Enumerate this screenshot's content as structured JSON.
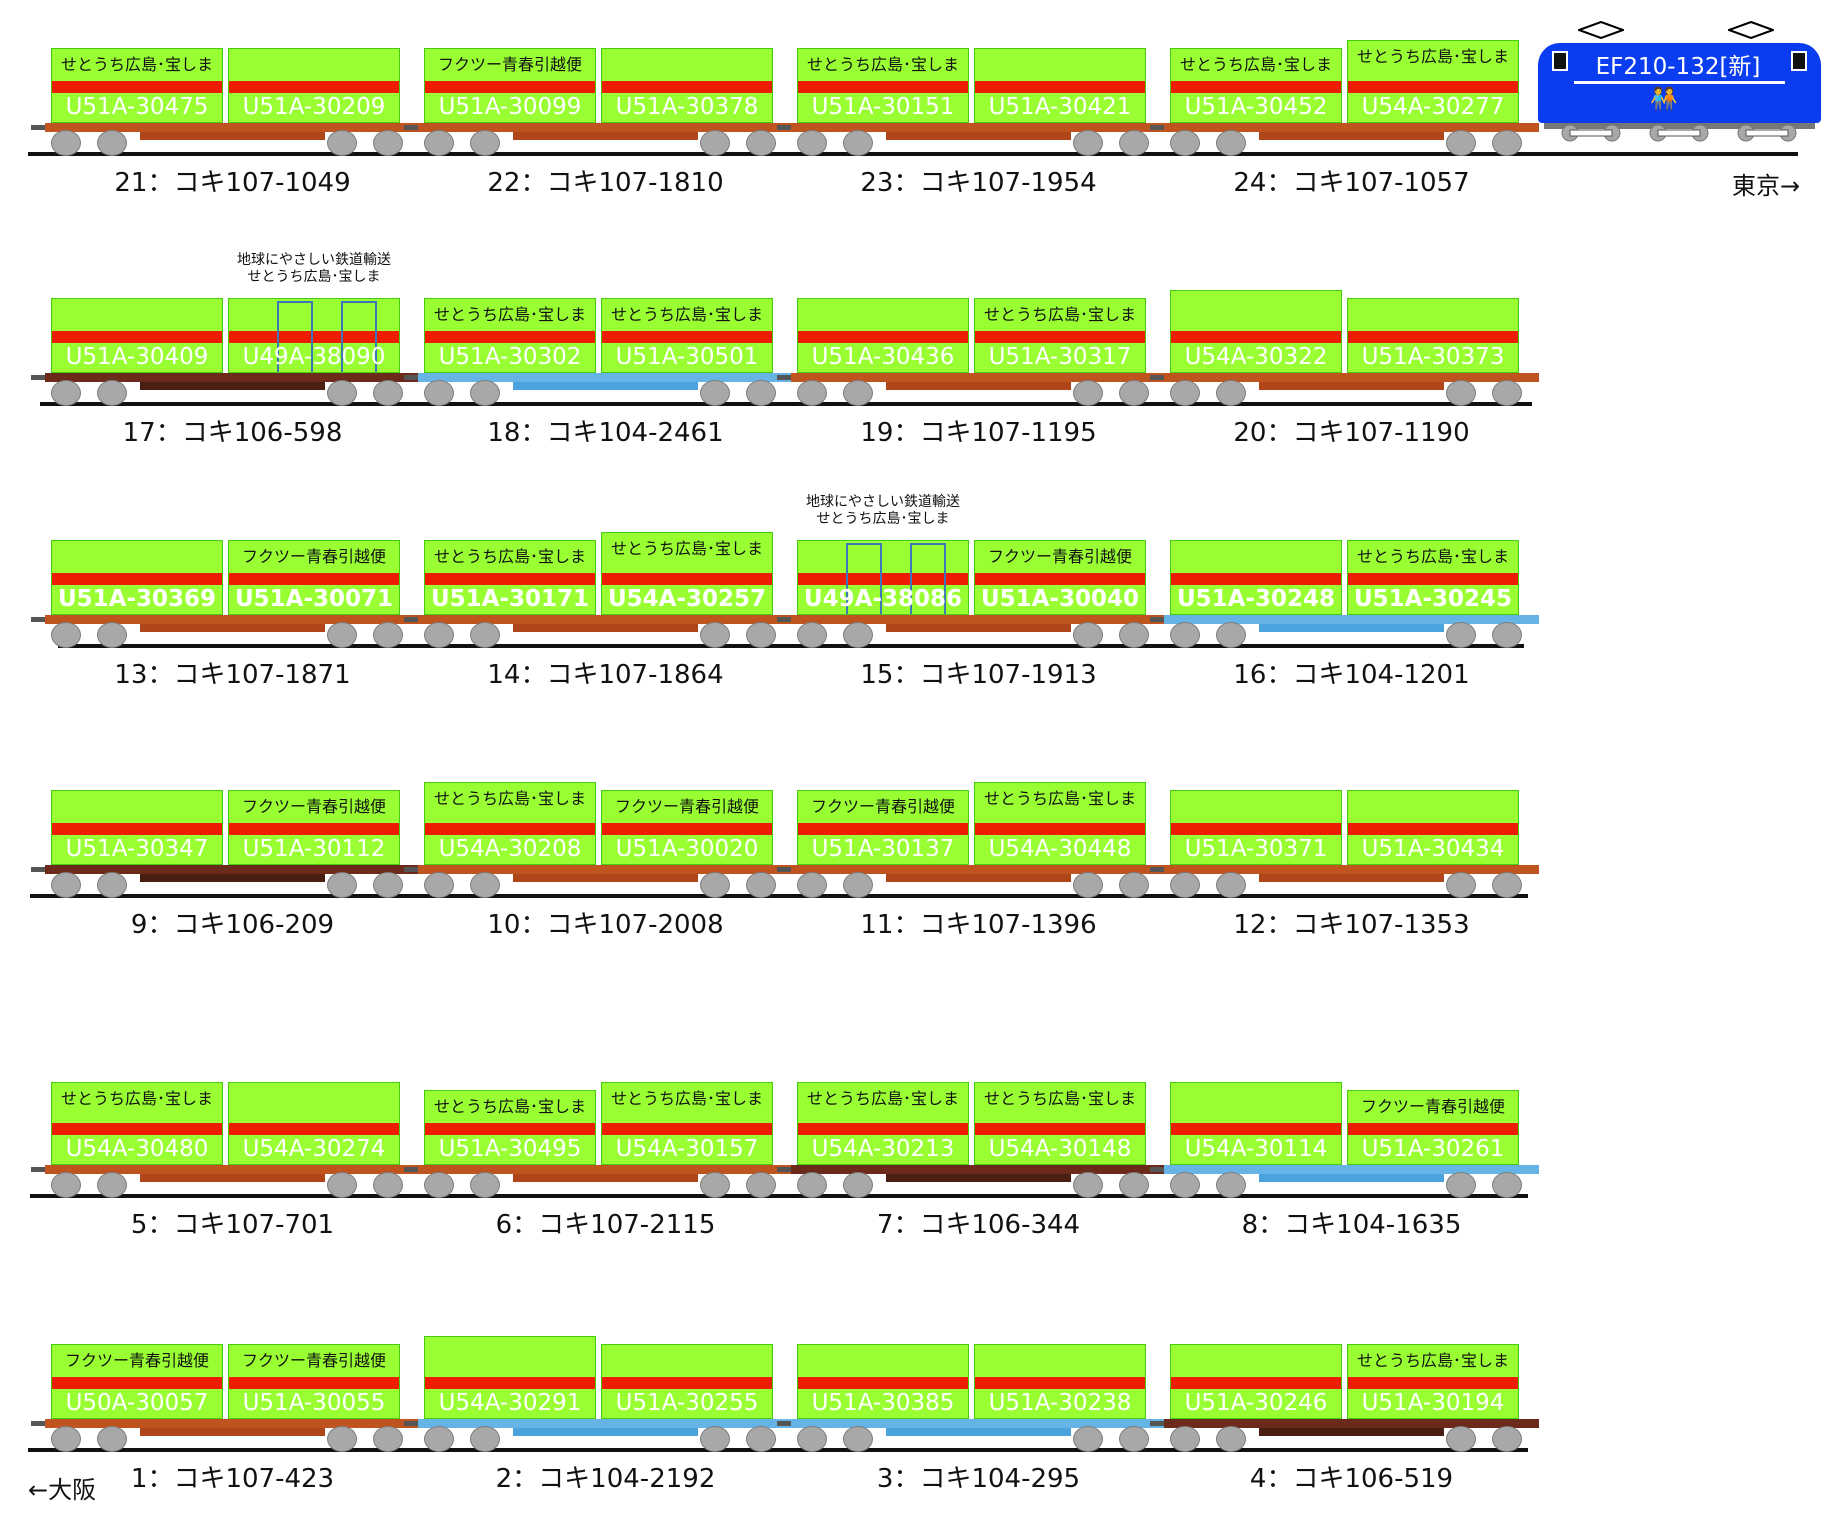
{
  "direction_labels": {
    "tokyo": "東京→",
    "osaka": "←大阪"
  },
  "locomotive": {
    "name": "EF210-132[新]",
    "color": "#0a3cf0"
  },
  "colors": {
    "container_green": "#99ff33",
    "container_stripe": "#ee1c00",
    "deck_brown": "#c0541f",
    "deck_darkbrown": "#6b2a1a",
    "deck_blue": "#66b3e6",
    "wheel_gray": "#a8a8a8"
  },
  "annotation": {
    "line1": "地球にやさしい鉄道輸送",
    "line2": "せとうち広島･宝しま"
  },
  "rows": [
    {
      "row": 1,
      "cars": [
        {
          "number": "21",
          "label": "21：コキ107-1049",
          "deck": "brown",
          "containers": [
            {
              "id": "U51A-30475",
              "label": "せとうち広島･宝しま"
            },
            {
              "id": "U51A-30209",
              "label": ""
            }
          ]
        },
        {
          "number": "22",
          "label": "22：コキ107-1810",
          "deck": "brown",
          "containers": [
            {
              "id": "U51A-30099",
              "label": "フクツー青春引越便"
            },
            {
              "id": "U51A-30378",
              "label": ""
            }
          ]
        },
        {
          "number": "23",
          "label": "23：コキ107-1954",
          "deck": "brown",
          "containers": [
            {
              "id": "U51A-30151",
              "label": "せとうち広島･宝しま"
            },
            {
              "id": "U51A-30421",
              "label": ""
            }
          ]
        },
        {
          "number": "24",
          "label": "24：コキ107-1057",
          "deck": "brown",
          "containers": [
            {
              "id": "U51A-30452",
              "label": "せとうち広島･宝しま"
            },
            {
              "id": "U54A-30277",
              "label": "せとうち広島･宝しま",
              "tall": true
            }
          ]
        }
      ]
    },
    {
      "row": 2,
      "cars": [
        {
          "number": "17",
          "label": "17：コキ106-598",
          "deck": "darkbrown",
          "containers": [
            {
              "id": "U51A-30409",
              "label": ""
            },
            {
              "id": "U49A-38090",
              "label": "",
              "special": true
            }
          ]
        },
        {
          "number": "18",
          "label": "18：コキ104-2461",
          "deck": "blue",
          "containers": [
            {
              "id": "U51A-30302",
              "label": "せとうち広島･宝しま"
            },
            {
              "id": "U51A-30501",
              "label": "せとうち広島･宝しま"
            }
          ]
        },
        {
          "number": "19",
          "label": "19：コキ107-1195",
          "deck": "brown",
          "containers": [
            {
              "id": "U51A-30436",
              "label": ""
            },
            {
              "id": "U51A-30317",
              "label": "せとうち広島･宝しま"
            }
          ]
        },
        {
          "number": "20",
          "label": "20：コキ107-1190",
          "deck": "brown",
          "containers": [
            {
              "id": "U54A-30322",
              "label": "",
              "tall": true
            },
            {
              "id": "U51A-30373",
              "label": ""
            }
          ]
        }
      ]
    },
    {
      "row": 3,
      "cars": [
        {
          "number": "13",
          "label": "13：コキ107-1871",
          "deck": "brown",
          "containers": [
            {
              "id": "U51A-30369",
              "label": ""
            },
            {
              "id": "U51A-30071",
              "label": "フクツー青春引越便"
            }
          ]
        },
        {
          "number": "14",
          "label": "14：コキ107-1864",
          "deck": "brown",
          "containers": [
            {
              "id": "U51A-30171",
              "label": "せとうち広島･宝しま"
            },
            {
              "id": "U54A-30257",
              "label": "せとうち広島･宝しま",
              "tall": true
            }
          ]
        },
        {
          "number": "15",
          "label": "15：コキ107-1913",
          "deck": "brown",
          "containers": [
            {
              "id": "U49A-38086",
              "label": "",
              "special": true
            },
            {
              "id": "U51A-30040",
              "label": "フクツー青春引越便"
            }
          ]
        },
        {
          "number": "16",
          "label": "16：コキ104-1201",
          "deck": "blue",
          "containers": [
            {
              "id": "U51A-30248",
              "label": ""
            },
            {
              "id": "U51A-30245",
              "label": "せとうち広島･宝しま"
            }
          ]
        }
      ]
    },
    {
      "row": 4,
      "cars": [
        {
          "number": "9",
          "label": "9：コキ106-209",
          "deck": "darkbrown",
          "containers": [
            {
              "id": "U51A-30347",
              "label": ""
            },
            {
              "id": "U51A-30112",
              "label": "フクツー青春引越便"
            }
          ]
        },
        {
          "number": "10",
          "label": "10：コキ107-2008",
          "deck": "brown",
          "containers": [
            {
              "id": "U54A-30208",
              "label": "せとうち広島･宝しま",
              "tall": true
            },
            {
              "id": "U51A-30020",
              "label": "フクツー青春引越便"
            }
          ]
        },
        {
          "number": "11",
          "label": "11：コキ107-1396",
          "deck": "brown",
          "containers": [
            {
              "id": "U51A-30137",
              "label": "フクツー青春引越便"
            },
            {
              "id": "U54A-30448",
              "label": "せとうち広島･宝しま",
              "tall": true
            }
          ]
        },
        {
          "number": "12",
          "label": "12：コキ107-1353",
          "deck": "brown",
          "containers": [
            {
              "id": "U51A-30371",
              "label": ""
            },
            {
              "id": "U51A-30434",
              "label": ""
            }
          ]
        }
      ]
    },
    {
      "row": 5,
      "cars": [
        {
          "number": "5",
          "label": "5：コキ107-701",
          "deck": "brown",
          "containers": [
            {
              "id": "U54A-30480",
              "label": "せとうち広島･宝しま",
              "tall": true
            },
            {
              "id": "U54A-30274",
              "label": "",
              "tall": true
            }
          ]
        },
        {
          "number": "6",
          "label": "6：コキ107-2115",
          "deck": "brown",
          "containers": [
            {
              "id": "U51A-30495",
              "label": "せとうち広島･宝しま"
            },
            {
              "id": "U54A-30157",
              "label": "せとうち広島･宝しま",
              "tall": true
            }
          ]
        },
        {
          "number": "7",
          "label": "7：コキ106-344",
          "deck": "darkbrown",
          "containers": [
            {
              "id": "U54A-30213",
              "label": "せとうち広島･宝しま",
              "tall": true
            },
            {
              "id": "U54A-30148",
              "label": "せとうち広島･宝しま",
              "tall": true
            }
          ]
        },
        {
          "number": "8",
          "label": "8：コキ104-1635",
          "deck": "blue",
          "containers": [
            {
              "id": "U54A-30114",
              "label": "",
              "tall": true
            },
            {
              "id": "U51A-30261",
              "label": "フクツー青春引越便"
            }
          ]
        }
      ]
    },
    {
      "row": 6,
      "cars": [
        {
          "number": "1",
          "label": "1：コキ107-423",
          "deck": "brown",
          "containers": [
            {
              "id": "U50A-30057",
              "label": "フクツー青春引越便"
            },
            {
              "id": "U51A-30055",
              "label": "フクツー青春引越便"
            }
          ]
        },
        {
          "number": "2",
          "label": "2：コキ104-2192",
          "deck": "blue",
          "containers": [
            {
              "id": "U54A-30291",
              "label": "",
              "tall": true
            },
            {
              "id": "U51A-30255",
              "label": ""
            }
          ]
        },
        {
          "number": "3",
          "label": "3：コキ104-295",
          "deck": "blue",
          "containers": [
            {
              "id": "U51A-30385",
              "label": ""
            },
            {
              "id": "U51A-30238",
              "label": ""
            }
          ]
        },
        {
          "number": "4",
          "label": "4：コキ106-519",
          "deck": "darkbrown",
          "containers": [
            {
              "id": "U51A-30246",
              "label": ""
            },
            {
              "id": "U51A-30194",
              "label": "せとうち広島･宝しま"
            }
          ]
        }
      ]
    }
  ]
}
